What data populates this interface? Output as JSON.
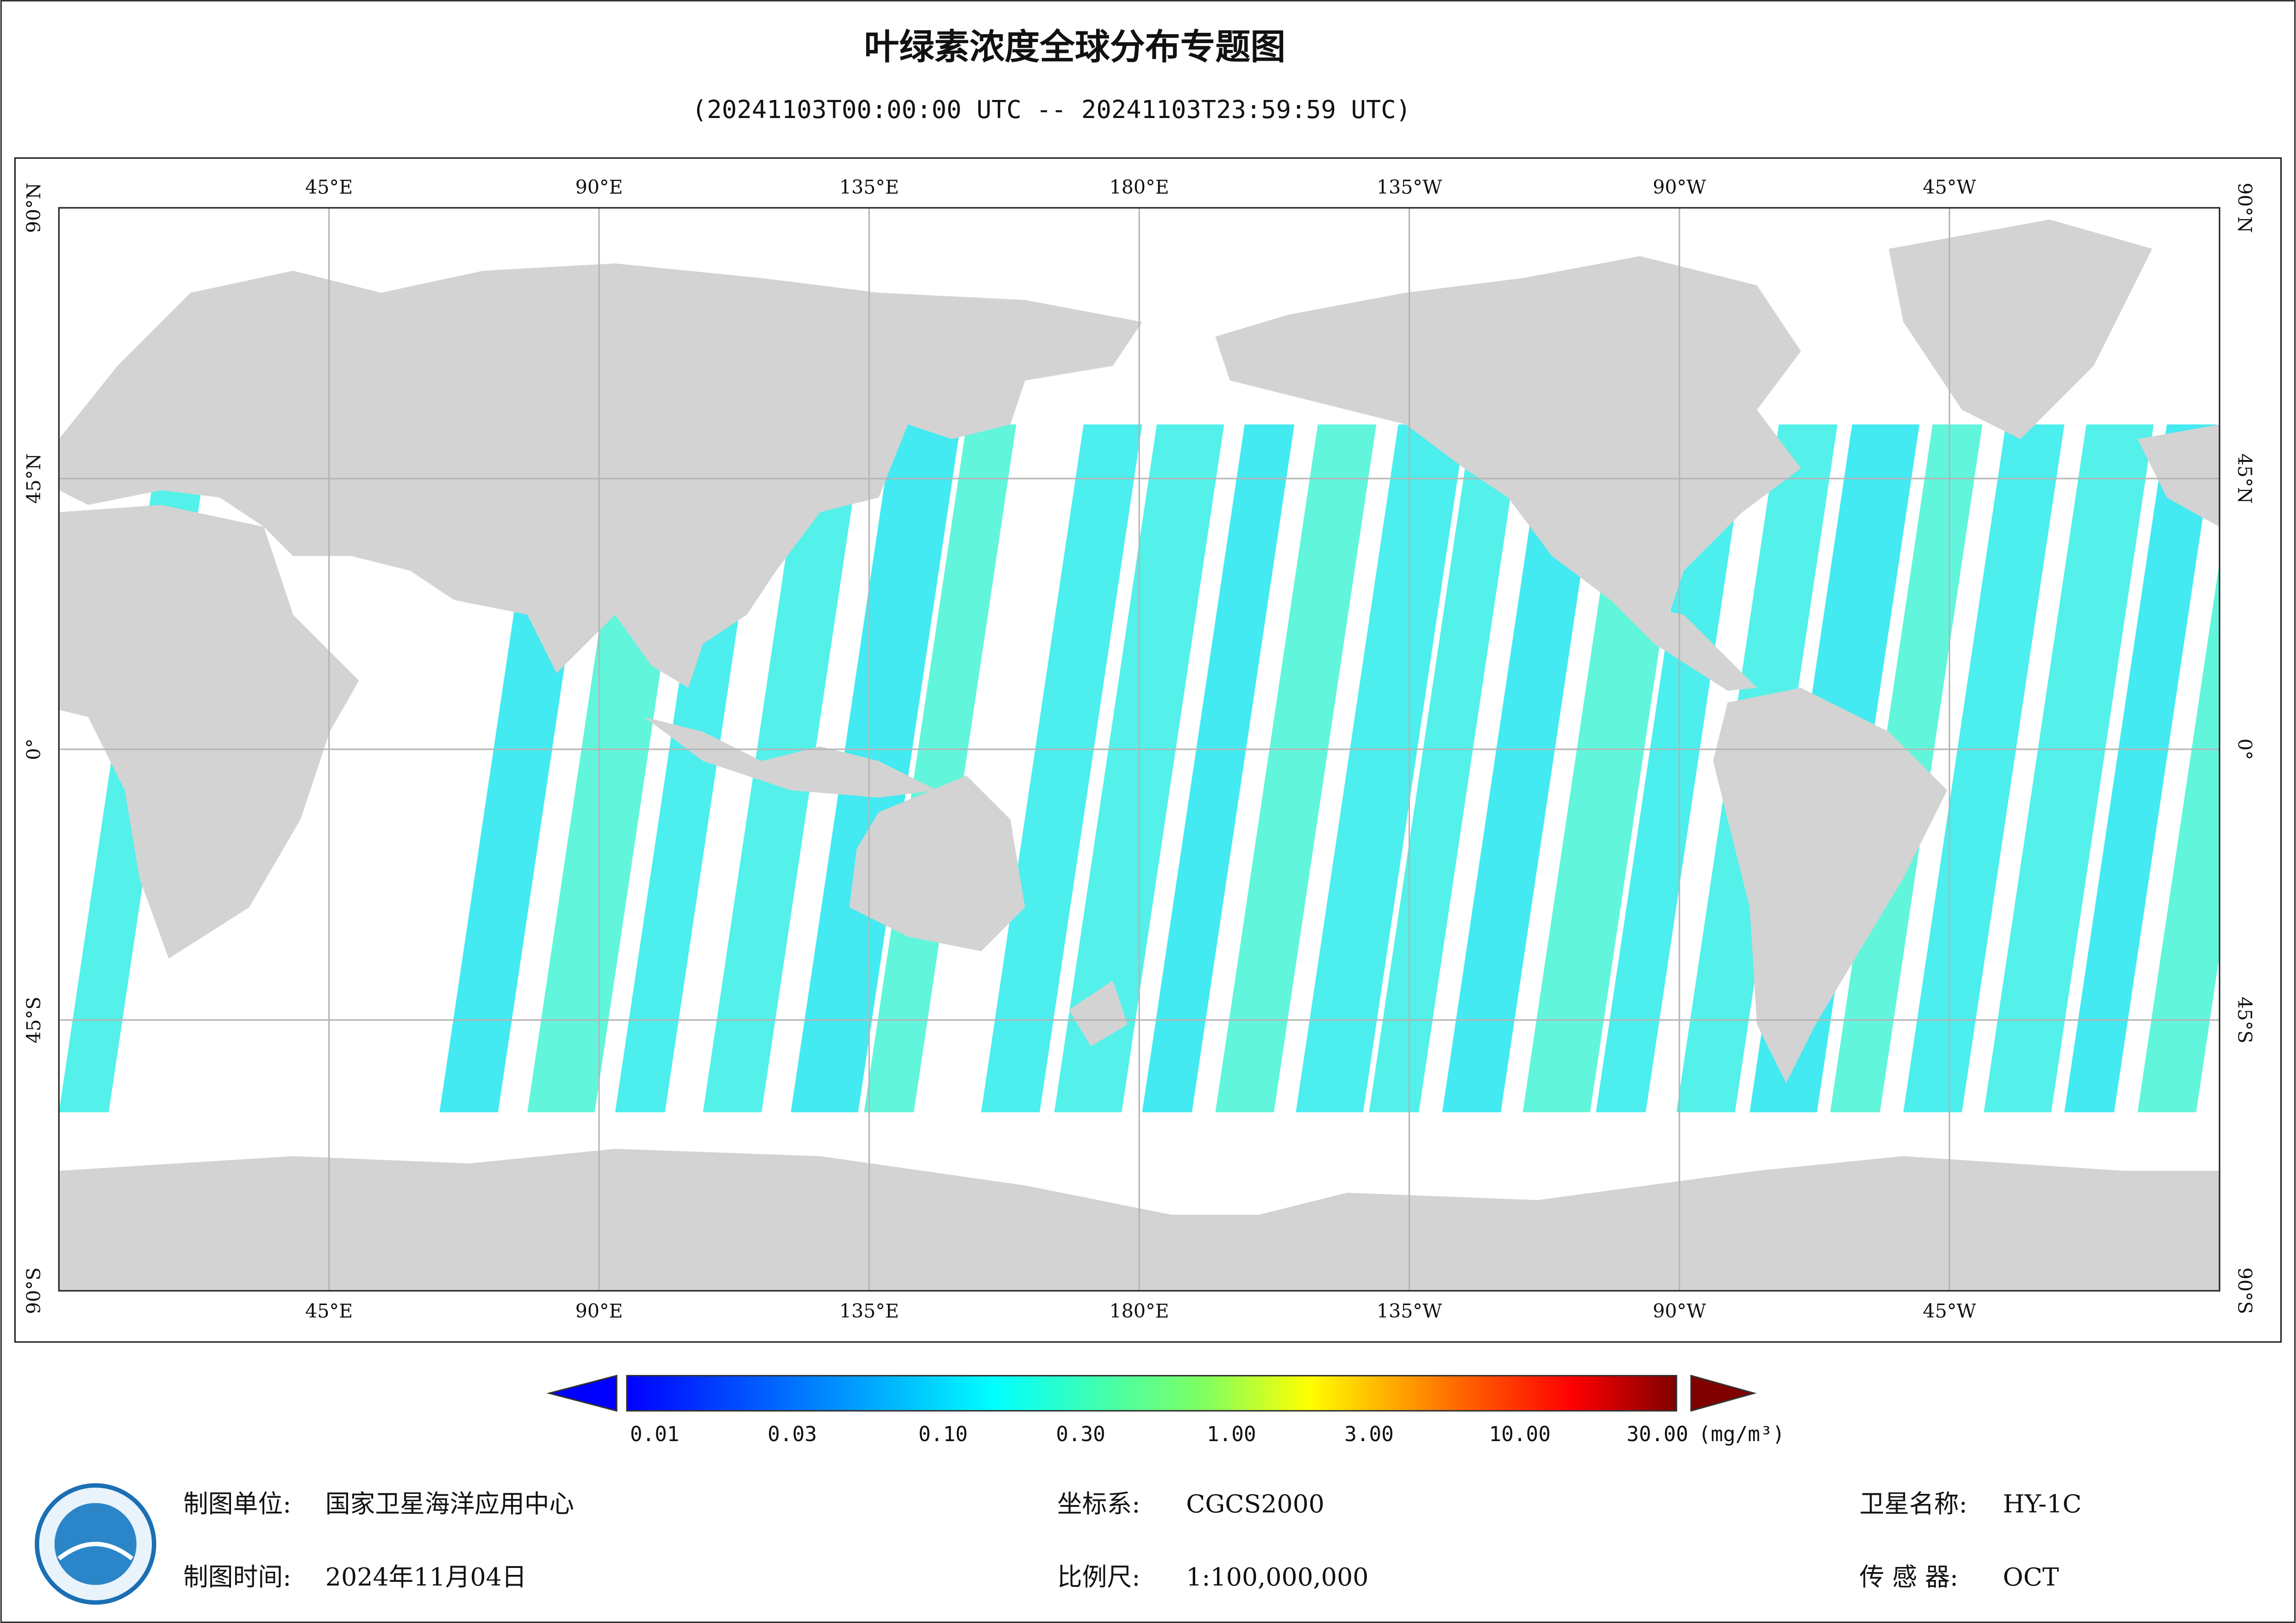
{
  "header": {
    "title": "叶绿素浓度全球分布专题图",
    "subtitle": "(20241103T00:00:00 UTC -- 20241103T23:59:59 UTC)"
  },
  "map": {
    "lon_labels": [
      "45°E",
      "90°E",
      "135°E",
      "180°E",
      "135°W",
      "90°W",
      "45°W"
    ],
    "lat_labels": [
      "90°N",
      "45°N",
      "0°",
      "45°S",
      "90°S"
    ]
  },
  "colorbar": {
    "ticks": [
      {
        "value": 0.01,
        "label": "0.01"
      },
      {
        "value": 0.03,
        "label": "0.03"
      },
      {
        "value": 0.1,
        "label": "0.10"
      },
      {
        "value": 0.3,
        "label": "0.30"
      },
      {
        "value": 1,
        "label": "1.00"
      },
      {
        "value": 3,
        "label": "3.00"
      },
      {
        "value": 10,
        "label": "10.00"
      },
      {
        "value": 30,
        "label": "30.00"
      }
    ],
    "unit": "(mg/m³)",
    "log": true
  },
  "footer": {
    "items": [
      {
        "label": "制图单位:",
        "value": "国家卫星海洋应用中心"
      },
      {
        "label": "坐标系:",
        "value": "CGCS2000"
      },
      {
        "label": "卫星名称:",
        "value": "HY-1C"
      },
      {
        "label": "制图时间:",
        "value": "2024年11月04日"
      },
      {
        "label": "比例尺:",
        "value": "1:100,000,000"
      },
      {
        "label": "传 感 器:",
        "value": "OCT"
      }
    ]
  }
}
